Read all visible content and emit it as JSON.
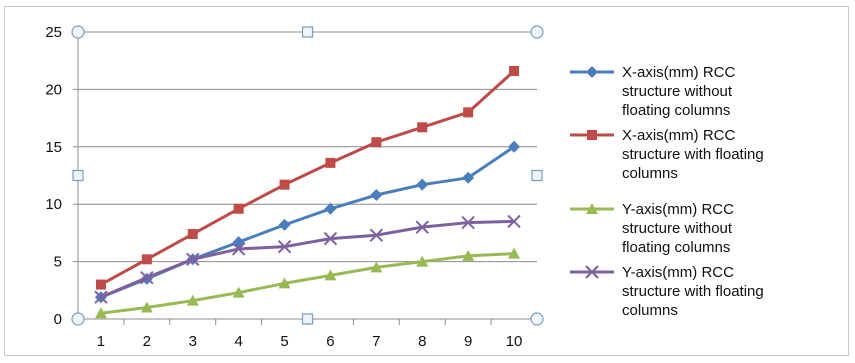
{
  "chart_data": {
    "type": "line",
    "title": "",
    "xlabel": "",
    "ylabel": "",
    "x": [
      1,
      2,
      3,
      4,
      5,
      6,
      7,
      8,
      9,
      10
    ],
    "xlim": [
      0.5,
      10.5
    ],
    "ylim": [
      0,
      25
    ],
    "y_ticks": [
      0,
      5,
      10,
      15,
      20,
      25
    ],
    "grid": "horizontal",
    "legend_position": "right",
    "series": [
      {
        "name": "X-axis(mm) RCC structure without floating columns",
        "legend_lines": [
          "X-axis(mm) RCC",
          "structure without",
          "floating columns"
        ],
        "color": "#4a7ebb",
        "marker": "diamond",
        "values": [
          1.9,
          3.5,
          5.2,
          6.7,
          8.2,
          9.6,
          10.8,
          11.7,
          12.3,
          15.0
        ]
      },
      {
        "name": "X-axis(mm) RCC structure with floating columns",
        "legend_lines": [
          "X-axis(mm) RCC",
          "structure with floating",
          "columns"
        ],
        "color": "#be4b48",
        "marker": "square",
        "values": [
          3.0,
          5.2,
          7.4,
          9.6,
          11.7,
          13.6,
          15.4,
          16.7,
          18.0,
          21.6
        ]
      },
      {
        "name": "Y-axis(mm) RCC structure without floating columns",
        "legend_lines": [
          "Y-axis(mm) RCC",
          "structure without",
          "floating columns"
        ],
        "color": "#98b954",
        "marker": "triangle",
        "values": [
          0.5,
          1.0,
          1.6,
          2.3,
          3.1,
          3.8,
          4.5,
          5.0,
          5.5,
          5.7
        ]
      },
      {
        "name": "Y-axis(mm) RCC structure with floating columns",
        "legend_lines": [
          "Y-axis(mm) RCC",
          "structure with floating",
          "columns"
        ],
        "color": "#7d60a0",
        "marker": "x",
        "values": [
          1.9,
          3.6,
          5.2,
          6.1,
          6.3,
          7.0,
          7.3,
          8.0,
          8.4,
          8.5
        ]
      }
    ]
  }
}
